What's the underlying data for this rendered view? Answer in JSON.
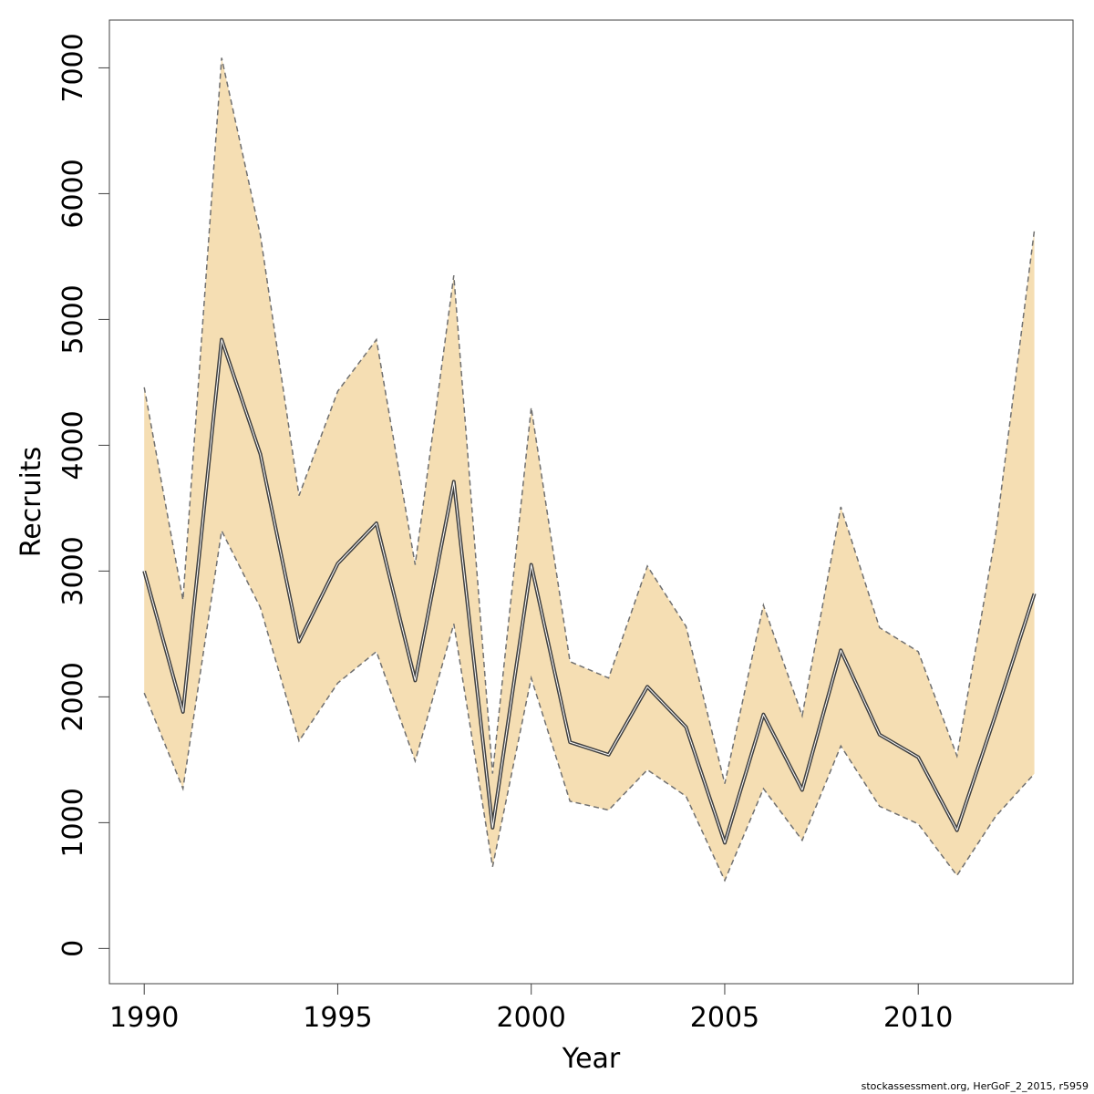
{
  "chart_data": {
    "type": "area",
    "xlabel": "Year",
    "ylabel": "Recruits",
    "xlim": [
      1989.1,
      2014.0
    ],
    "ylim": [
      -280,
      7380
    ],
    "x_ticks": [
      1990,
      1995,
      2000,
      2005,
      2010
    ],
    "y_ticks": [
      0,
      1000,
      2000,
      3000,
      4000,
      5000,
      6000,
      7000
    ],
    "grid": false,
    "legend": "none",
    "colors": {
      "band": "#f5deb3",
      "line": "#404040",
      "bound": "#707070",
      "axis": "#404040"
    },
    "x": [
      1990,
      1991,
      1992,
      1993,
      1994,
      1995,
      1996,
      1997,
      1998,
      1999,
      2000,
      2001,
      2002,
      2003,
      2004,
      2005,
      2006,
      2007,
      2008,
      2009,
      2010,
      2011,
      2012,
      2013
    ],
    "series": [
      {
        "role": "estimate",
        "values": [
          3000,
          1880,
          4840,
          3930,
          2440,
          3060,
          3380,
          2130,
          3710,
          960,
          3050,
          1640,
          1540,
          2080,
          1760,
          840,
          1860,
          1260,
          2370,
          1700,
          1520,
          940,
          1860,
          2820
        ]
      },
      {
        "role": "upper",
        "values": [
          4460,
          2770,
          7080,
          5670,
          3600,
          4430,
          4840,
          3050,
          5350,
          1390,
          4300,
          2280,
          2150,
          3040,
          2560,
          1310,
          2730,
          1850,
          3510,
          2550,
          2360,
          1530,
          3290,
          5710
        ]
      },
      {
        "role": "lower",
        "values": [
          2030,
          1270,
          3320,
          2710,
          1650,
          2110,
          2360,
          1490,
          2580,
          650,
          2150,
          1170,
          1100,
          1420,
          1210,
          540,
          1270,
          860,
          1610,
          1130,
          990,
          580,
          1050,
          1390
        ]
      }
    ]
  },
  "footer": {
    "credit": "stockassessment.org, HerGoF_2_2015, r5959"
  }
}
